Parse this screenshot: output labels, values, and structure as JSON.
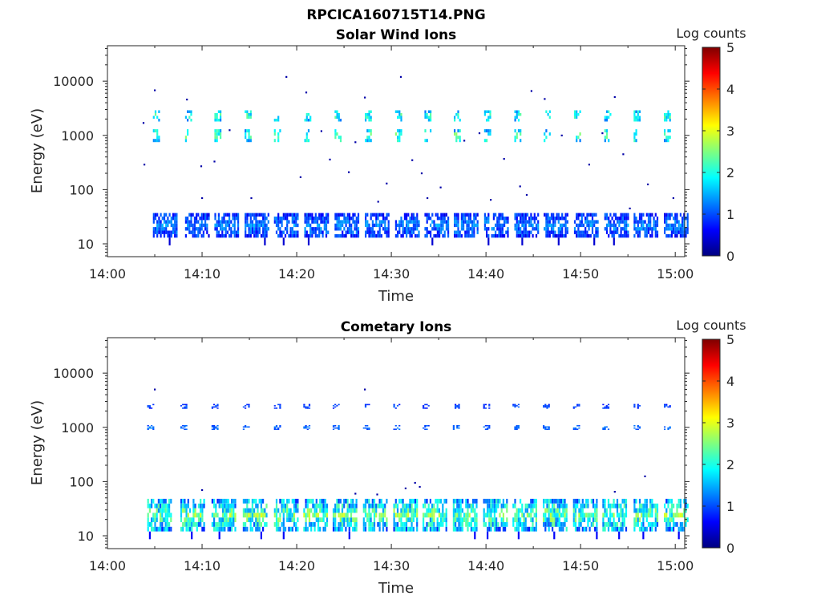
{
  "figure": {
    "title": "RPCICA160715T14.PNG"
  },
  "colormap": {
    "name": "jet",
    "stops": [
      "#00007f",
      "#0000ff",
      "#007fff",
      "#00ffff",
      "#7fff7f",
      "#ffff00",
      "#ff7f00",
      "#ff0000",
      "#7f0000"
    ]
  },
  "chart_data": [
    {
      "type": "heatmap",
      "title": "Solar Wind Ions",
      "xlabel": "Time",
      "ylabel": "Energy (eV)",
      "x_range_minutes": [
        0,
        61
      ],
      "x_ticks": [
        {
          "minute": 0,
          "label": "14:00"
        },
        {
          "minute": 10,
          "label": "14:10"
        },
        {
          "minute": 20,
          "label": "14:20"
        },
        {
          "minute": 30,
          "label": "14:30"
        },
        {
          "minute": 40,
          "label": "14:40"
        },
        {
          "minute": 50,
          "label": "14:50"
        },
        {
          "minute": 60,
          "label": "15:00"
        }
      ],
      "y_scale": "log",
      "y_range": [
        5.8,
        45000
      ],
      "y_ticks": [
        {
          "value": 10,
          "label": "10"
        },
        {
          "value": 100,
          "label": "100"
        },
        {
          "value": 1000,
          "label": "1000"
        },
        {
          "value": 10000,
          "label": "10000"
        }
      ],
      "colorbar": {
        "label": "Log counts",
        "range": [
          0,
          5
        ],
        "ticks": [
          "0",
          "1",
          "2",
          "3",
          "4",
          "5"
        ]
      },
      "scan_start_minutes": [
        4.8,
        8.2,
        11.3,
        14.5,
        17.6,
        20.8,
        24.0,
        27.2,
        30.4,
        33.5,
        36.6,
        39.8,
        43.0,
        46.1,
        49.3,
        52.5,
        55.6,
        58.8
      ],
      "bands": [
        {
          "name": "low",
          "energy_range": [
            13,
            37
          ],
          "level_range": [
            0.4,
            1.6
          ]
        },
        {
          "name": "mid",
          "energy_range": [
            750,
            1300
          ],
          "level_range": [
            1.0,
            2.8
          ]
        },
        {
          "name": "high",
          "energy_range": [
            1800,
            2900
          ],
          "level_range": [
            1.0,
            2.6
          ]
        }
      ],
      "scatter_points": [
        {
          "minute": 3.8,
          "energy": 1700
        },
        {
          "minute": 3.9,
          "energy": 290
        },
        {
          "minute": 5.0,
          "energy": 6800
        },
        {
          "minute": 8.4,
          "energy": 4600
        },
        {
          "minute": 9.9,
          "energy": 270
        },
        {
          "minute": 10.0,
          "energy": 70
        },
        {
          "minute": 11.3,
          "energy": 330
        },
        {
          "minute": 12.9,
          "energy": 1250
        },
        {
          "minute": 15.2,
          "energy": 70
        },
        {
          "minute": 18.9,
          "energy": 12000
        },
        {
          "minute": 20.4,
          "energy": 170
        },
        {
          "minute": 21.0,
          "energy": 6200
        },
        {
          "minute": 22.6,
          "energy": 1200
        },
        {
          "minute": 23.5,
          "energy": 360
        },
        {
          "minute": 25.5,
          "energy": 210
        },
        {
          "minute": 26.2,
          "energy": 750
        },
        {
          "minute": 27.2,
          "energy": 5000
        },
        {
          "minute": 28.6,
          "energy": 60
        },
        {
          "minute": 29.5,
          "energy": 130
        },
        {
          "minute": 31.0,
          "energy": 12000
        },
        {
          "minute": 32.2,
          "energy": 350
        },
        {
          "minute": 33.2,
          "energy": 200
        },
        {
          "minute": 33.8,
          "energy": 70
        },
        {
          "minute": 35.2,
          "energy": 110
        },
        {
          "minute": 37.7,
          "energy": 800
        },
        {
          "minute": 39.3,
          "energy": 1100
        },
        {
          "minute": 40.5,
          "energy": 65
        },
        {
          "minute": 41.9,
          "energy": 370
        },
        {
          "minute": 43.6,
          "energy": 115
        },
        {
          "minute": 44.3,
          "energy": 80
        },
        {
          "minute": 44.8,
          "energy": 6600
        },
        {
          "minute": 46.2,
          "energy": 4700
        },
        {
          "minute": 48.0,
          "energy": 1000
        },
        {
          "minute": 50.9,
          "energy": 290
        },
        {
          "minute": 52.3,
          "energy": 1100
        },
        {
          "minute": 53.6,
          "energy": 5100
        },
        {
          "minute": 54.5,
          "energy": 450
        },
        {
          "minute": 55.2,
          "energy": 45
        },
        {
          "minute": 57.1,
          "energy": 125
        },
        {
          "minute": 59.8,
          "energy": 70
        }
      ]
    },
    {
      "type": "heatmap",
      "title": "Cometary Ions",
      "xlabel": "Time",
      "ylabel": "Energy (eV)",
      "x_range_minutes": [
        0,
        61
      ],
      "x_ticks": [
        {
          "minute": 0,
          "label": "14:00"
        },
        {
          "minute": 10,
          "label": "14:10"
        },
        {
          "minute": 20,
          "label": "14:20"
        },
        {
          "minute": 30,
          "label": "14:30"
        },
        {
          "minute": 40,
          "label": "14:40"
        },
        {
          "minute": 50,
          "label": "14:50"
        },
        {
          "minute": 60,
          "label": "15:00"
        }
      ],
      "y_scale": "log",
      "y_range": [
        5.8,
        45000
      ],
      "y_ticks": [
        {
          "value": 10,
          "label": "10"
        },
        {
          "value": 100,
          "label": "100"
        },
        {
          "value": 1000,
          "label": "1000"
        },
        {
          "value": 10000,
          "label": "10000"
        }
      ],
      "colorbar": {
        "label": "Log counts",
        "range": [
          0,
          5
        ],
        "ticks": [
          "0",
          "1",
          "2",
          "3",
          "4",
          "5"
        ]
      },
      "scan_start_minutes": [
        4.2,
        7.7,
        11.0,
        14.3,
        17.6,
        20.7,
        23.8,
        27.0,
        30.2,
        33.3,
        36.5,
        39.7,
        42.8,
        46.0,
        49.2,
        52.3,
        55.6,
        58.8
      ],
      "bands": [
        {
          "name": "low",
          "energy_range": [
            12,
            48
          ],
          "level_range": [
            0.6,
            3.0
          ]
        },
        {
          "name": "mid",
          "energy_range": [
            900,
            1100
          ],
          "level_range": [
            0.8,
            1.4
          ]
        },
        {
          "name": "high",
          "energy_range": [
            2200,
            2700
          ],
          "level_range": [
            0.6,
            1.2
          ]
        }
      ],
      "scatter_points": [
        {
          "minute": 5.0,
          "energy": 5000
        },
        {
          "minute": 10.0,
          "energy": 70
        },
        {
          "minute": 26.2,
          "energy": 60
        },
        {
          "minute": 27.2,
          "energy": 5000
        },
        {
          "minute": 28.5,
          "energy": 58
        },
        {
          "minute": 31.5,
          "energy": 75
        },
        {
          "minute": 32.5,
          "energy": 95
        },
        {
          "minute": 33.0,
          "energy": 80
        },
        {
          "minute": 53.6,
          "energy": 65
        },
        {
          "minute": 56.8,
          "energy": 125
        }
      ]
    }
  ]
}
